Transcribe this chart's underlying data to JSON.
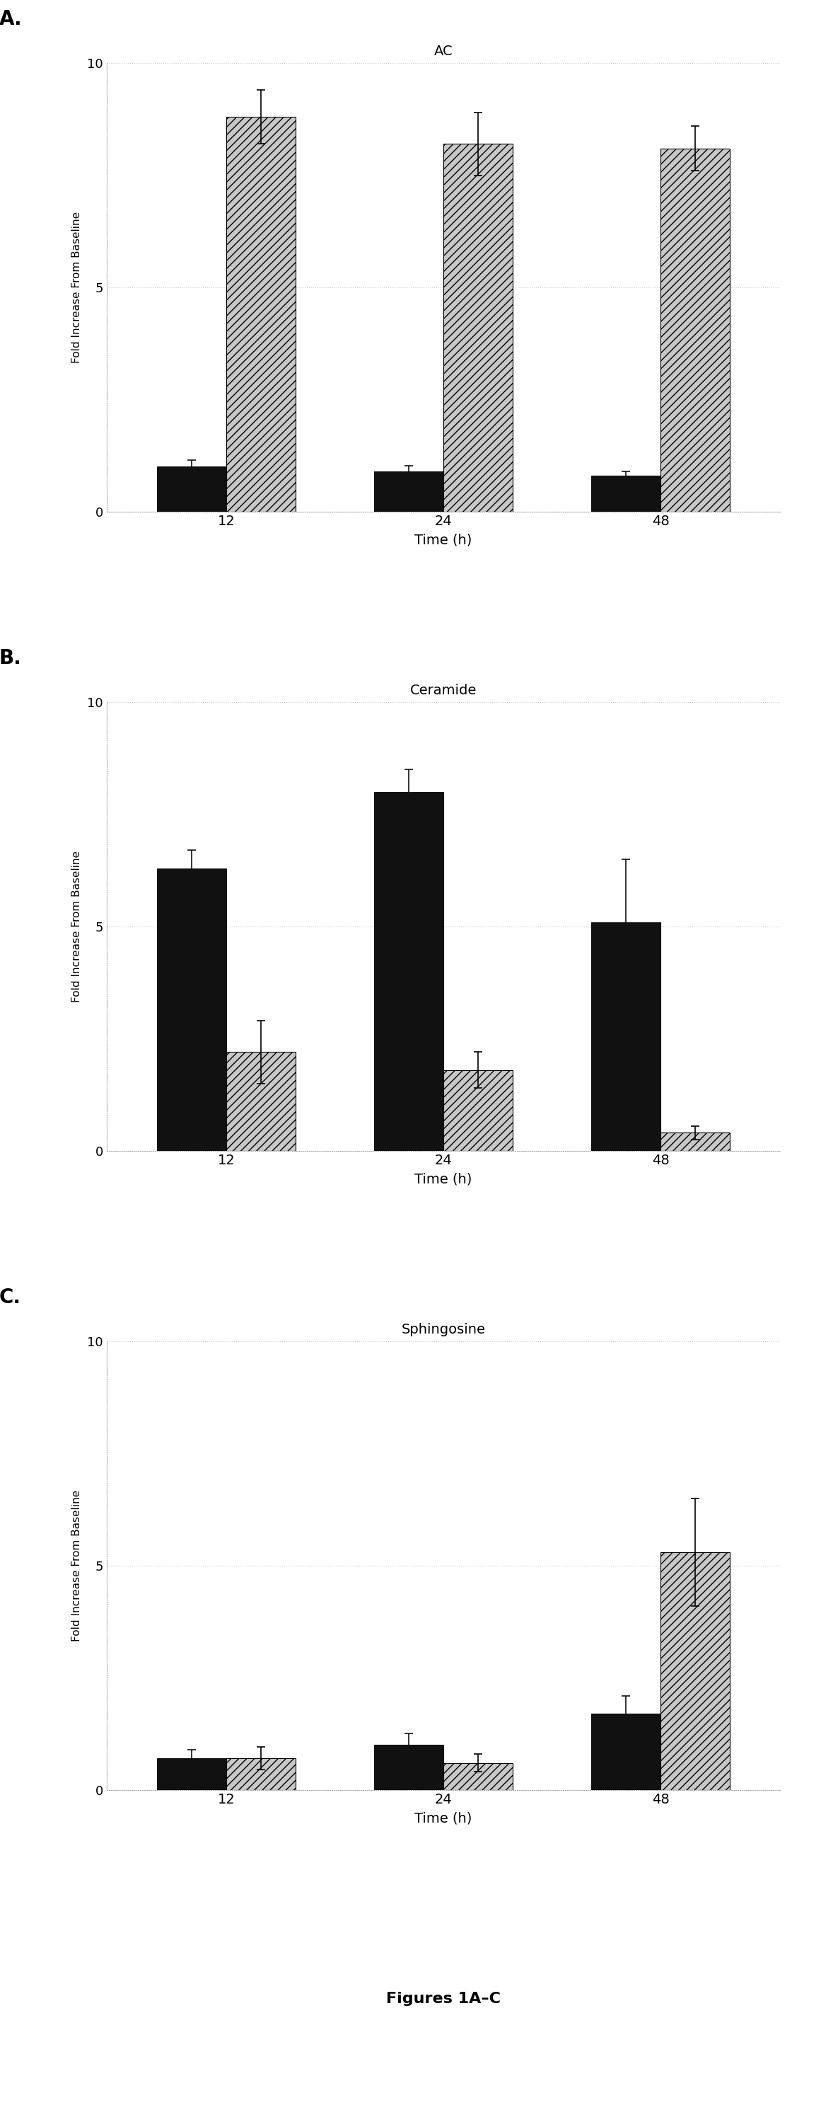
{
  "panel_A": {
    "title": "AC",
    "xlabel": "Time (h)",
    "ylabel": "Fold Increase From Baseline",
    "categories": [
      "12",
      "24",
      "48"
    ],
    "bar1_values": [
      1.0,
      0.9,
      0.8
    ],
    "bar1_errors": [
      0.15,
      0.12,
      0.1
    ],
    "bar2_values": [
      8.8,
      8.2,
      8.1
    ],
    "bar2_errors": [
      0.6,
      0.7,
      0.5
    ],
    "ylim": [
      0,
      10
    ],
    "yticks": [
      0,
      5,
      10
    ]
  },
  "panel_B": {
    "title": "Ceramide",
    "xlabel": "Time (h)",
    "ylabel": "Fold Increase From Baseline",
    "categories": [
      "12",
      "24",
      "48"
    ],
    "bar1_values": [
      6.3,
      8.0,
      5.1
    ],
    "bar1_errors": [
      0.4,
      0.5,
      1.4
    ],
    "bar2_values": [
      2.2,
      1.8,
      0.4
    ],
    "bar2_errors": [
      0.7,
      0.4,
      0.15
    ],
    "ylim": [
      0,
      10
    ],
    "yticks": [
      0,
      5,
      10
    ]
  },
  "panel_C": {
    "title": "Sphingosine",
    "xlabel": "Time (h)",
    "ylabel": "Fold Increase From Baseline",
    "categories": [
      "12",
      "24",
      "48"
    ],
    "bar1_values": [
      0.7,
      1.0,
      1.7
    ],
    "bar1_errors": [
      0.2,
      0.25,
      0.4
    ],
    "bar2_values": [
      0.7,
      0.6,
      5.3
    ],
    "bar2_errors": [
      0.25,
      0.2,
      1.2
    ],
    "ylim": [
      0,
      10
    ],
    "yticks": [
      0,
      5,
      10
    ]
  },
  "figure_caption": "Figures 1A–C",
  "bar_width": 0.32,
  "black_color": "#111111",
  "hatch_color": "#888888",
  "hatch_pattern": "///",
  "hatch_facecolor": "#c8c8c8"
}
